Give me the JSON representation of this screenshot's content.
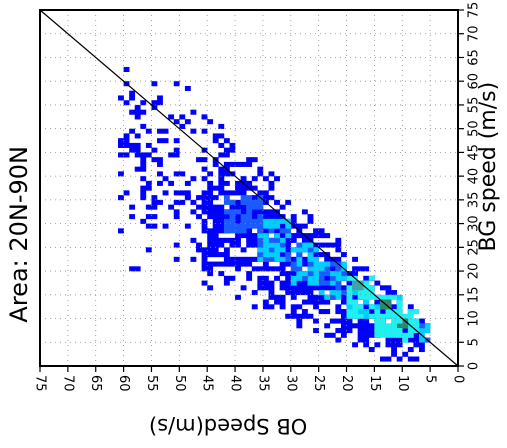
{
  "chart_data": {
    "type": "heatmap",
    "title": "Area: 20N-90N",
    "xlabel": "OB Speed(m/s)",
    "ylabel": "BG speed (m/s)",
    "xlim": [
      75,
      0
    ],
    "ylim": [
      0,
      75
    ],
    "x_reversed": true,
    "x_ticks": [
      "75",
      "70",
      "65",
      "60",
      "55",
      "50",
      "45",
      "40",
      "35",
      "30",
      "25",
      "20",
      "15",
      "10",
      "5",
      "0"
    ],
    "y_ticks": [
      "0",
      "5",
      "10",
      "15",
      "20",
      "25",
      "30",
      "35",
      "40",
      "45",
      "50",
      "55",
      "60",
      "65",
      "70",
      "75"
    ],
    "grid": true,
    "reference_line": "y = x",
    "colors": {
      "sparse": "#0000ff",
      "low": "#1a5cff",
      "medium": "#00cfff",
      "high": "#22f0f0",
      "dense": "#3aa6a6",
      "peak": "#2b8a6a"
    },
    "density_cells": [
      {
        "obs_range": [
          5,
          7
        ],
        "bg_range": [
          5,
          9
        ],
        "level": "medium"
      },
      {
        "obs_range": [
          7,
          10
        ],
        "bg_range": [
          5,
          12
        ],
        "level": "high"
      },
      {
        "obs_range": [
          9,
          11
        ],
        "bg_range": [
          8,
          10
        ],
        "level": "peak"
      },
      {
        "obs_range": [
          10,
          15
        ],
        "bg_range": [
          6,
          15
        ],
        "level": "high"
      },
      {
        "obs_range": [
          12,
          14
        ],
        "bg_range": [
          12,
          14
        ],
        "level": "peak"
      },
      {
        "obs_range": [
          15,
          20
        ],
        "bg_range": [
          10,
          19
        ],
        "level": "high"
      },
      {
        "obs_range": [
          17,
          19
        ],
        "bg_range": [
          16,
          18
        ],
        "level": "dense"
      },
      {
        "obs_range": [
          20,
          25
        ],
        "bg_range": [
          14,
          22
        ],
        "level": "medium"
      },
      {
        "obs_range": [
          25,
          30
        ],
        "bg_range": [
          17,
          26
        ],
        "level": "medium"
      },
      {
        "obs_range": [
          30,
          36
        ],
        "bg_range": [
          22,
          31
        ],
        "level": "medium"
      },
      {
        "obs_range": [
          35,
          42
        ],
        "bg_range": [
          28,
          36
        ],
        "level": "low"
      }
    ]
  }
}
